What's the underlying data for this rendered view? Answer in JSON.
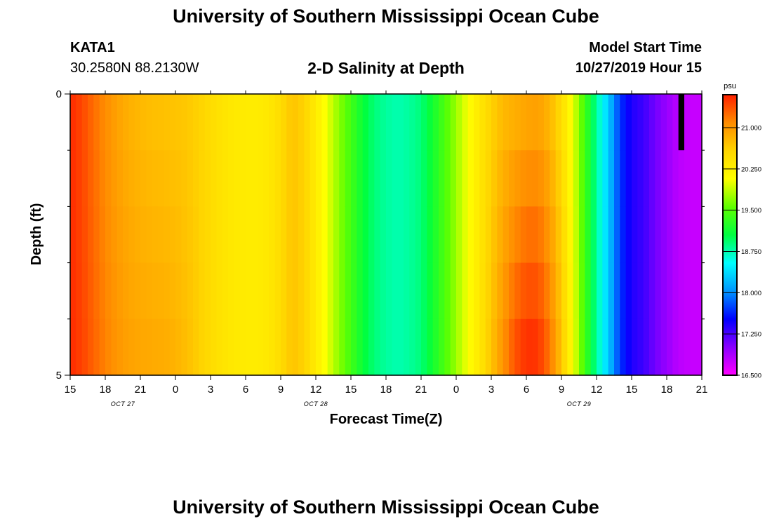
{
  "header": {
    "title_top": "University of Southern Mississippi Ocean Cube",
    "title_bottom": "University of Southern Mississippi Ocean Cube",
    "station_id": "KATA1",
    "station_coords": "30.2580N 88.2130W",
    "model_start_label": "Model Start Time",
    "model_start_value": "10/27/2019 Hour 15"
  },
  "chart_data": {
    "type": "heatmap",
    "title": "2-D Salinity at Depth",
    "xlabel": "Forecast Time(Z)",
    "ylabel": "Depth (ft)",
    "x_tick_labels": [
      "15",
      "18",
      "21",
      "0",
      "3",
      "6",
      "9",
      "12",
      "15",
      "18",
      "21",
      "0",
      "3",
      "6",
      "9",
      "12",
      "15",
      "18",
      "21"
    ],
    "x_date_labels": [
      {
        "label": "OCT 27",
        "at_tick": 1.5
      },
      {
        "label": "OCT 28",
        "at_tick": 7
      },
      {
        "label": "OCT 29",
        "at_tick": 14.5
      }
    ],
    "y_tick_labels": [
      "0",
      "5"
    ],
    "ylim": [
      0,
      5
    ],
    "y_minor_ticks": [
      1,
      2,
      3,
      4
    ],
    "forecast_hours_range": [
      0,
      54
    ],
    "colorbar": {
      "unit_label": "psu",
      "tick_values": [
        "21.000",
        "20.250",
        "19.500",
        "18.750",
        "18.000",
        "17.250",
        "16.500"
      ],
      "range": [
        16.5,
        21.6
      ],
      "colors_high_to_low": [
        "#ff2000",
        "#ff8c00",
        "#ffd500",
        "#ffff00",
        "#60ff00",
        "#00ff40",
        "#00ffff",
        "#0096ff",
        "#0000ff",
        "#8a00ff",
        "#ff00ff"
      ]
    },
    "depth_layers": [
      0.5,
      1.5,
      2.5,
      3.5,
      4.5
    ],
    "time_hours": [
      0,
      1,
      2,
      3,
      4,
      5,
      6,
      7,
      8,
      9,
      10,
      11,
      12,
      13,
      14,
      15,
      16,
      17,
      18,
      19,
      20,
      21,
      22,
      23,
      24,
      25,
      26,
      27,
      28,
      29,
      30,
      31,
      32,
      33,
      34,
      35,
      36,
      37,
      38,
      39,
      40,
      41,
      42,
      43,
      44,
      45,
      46,
      47,
      48,
      49,
      50,
      51,
      52,
      53,
      54
    ],
    "salinity_surface": [
      21.55,
      21.42,
      21.24,
      21.08,
      20.94,
      20.84,
      20.78,
      20.74,
      20.72,
      20.7,
      20.67,
      20.6,
      20.5,
      20.4,
      20.33,
      20.3,
      20.3,
      20.35,
      20.5,
      20.7,
      20.6,
      20.3,
      20.0,
      19.7,
      19.4,
      19.1,
      18.9,
      18.8,
      18.75,
      18.8,
      18.9,
      19.15,
      19.45,
      19.75,
      20.05,
      20.35,
      20.6,
      20.78,
      20.85,
      20.92,
      20.95,
      20.8,
      20.5,
      20.0,
      19.4,
      18.8,
      18.3,
      17.7,
      17.4,
      17.3,
      17.1,
      16.95,
      16.8,
      16.75,
      16.75
    ],
    "salinity_bottom_offset": [
      0,
      0.02,
      0.04,
      0.06,
      0.08,
      0.1,
      0.12,
      0.14,
      0.14,
      0.12,
      0.06,
      0.02,
      0,
      0,
      0,
      0,
      0,
      0,
      0,
      0,
      0,
      0,
      0,
      0,
      0,
      0,
      0,
      0,
      0,
      0,
      0,
      0,
      0,
      0,
      0,
      0,
      0.1,
      0.25,
      0.5,
      0.6,
      0.55,
      0.4,
      0.2,
      0.05,
      0,
      0,
      0,
      0,
      0,
      0,
      0,
      0,
      0,
      0,
      0
    ],
    "masked_cell": {
      "hour_range": [
        52,
        52.5
      ],
      "depth_range": [
        0,
        1
      ]
    }
  }
}
